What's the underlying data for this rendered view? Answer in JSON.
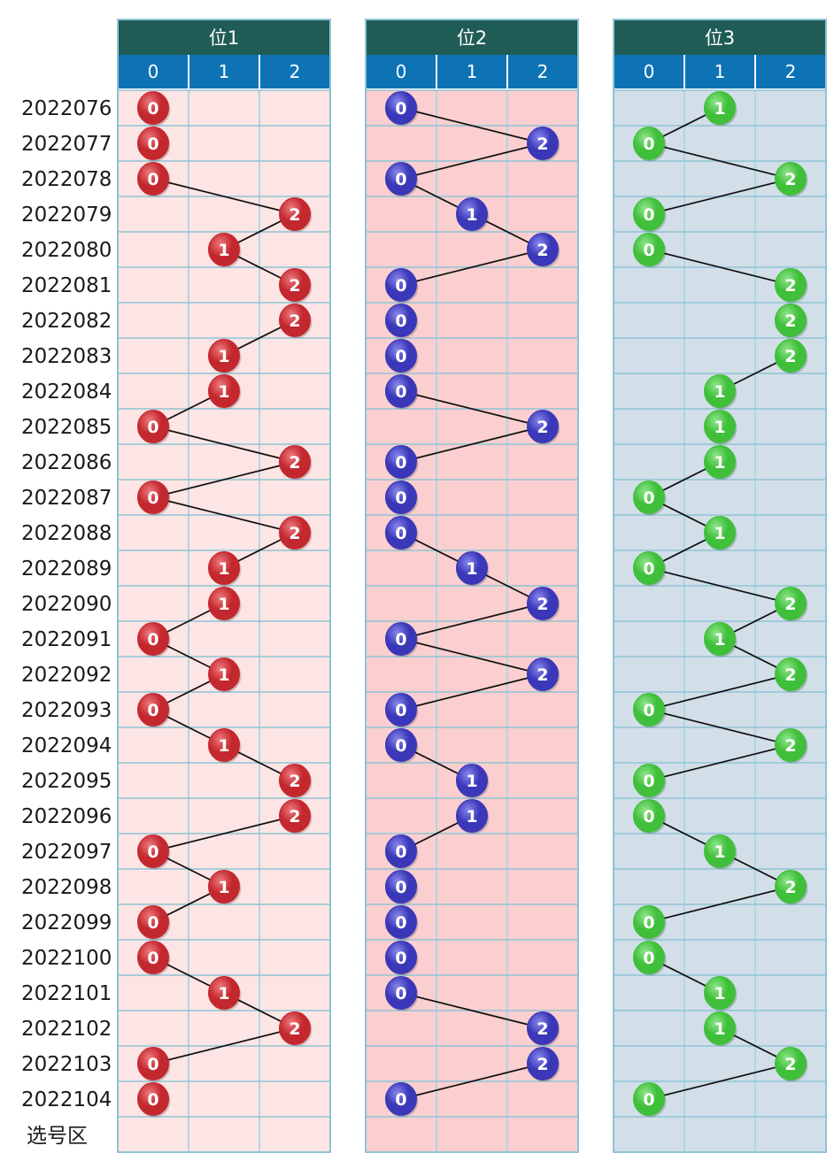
{
  "chart_data": {
    "type": "scatter",
    "row_labels": [
      "2022076",
      "2022077",
      "2022078",
      "2022079",
      "2022080",
      "2022081",
      "2022082",
      "2022083",
      "2022084",
      "2022085",
      "2022086",
      "2022087",
      "2022088",
      "2022089",
      "2022090",
      "2022091",
      "2022092",
      "2022093",
      "2022094",
      "2022095",
      "2022096",
      "2022097",
      "2022098",
      "2022099",
      "2022100",
      "2022101",
      "2022102",
      "2022103",
      "2022104"
    ],
    "footer_label": "选号区",
    "categories": [
      "0",
      "1",
      "2"
    ],
    "series": [
      {
        "name": "位1",
        "values": [
          0,
          0,
          0,
          2,
          1,
          2,
          2,
          1,
          1,
          0,
          2,
          0,
          2,
          1,
          1,
          0,
          1,
          0,
          1,
          2,
          2,
          0,
          1,
          0,
          0,
          1,
          2,
          0,
          0
        ]
      },
      {
        "name": "位2",
        "values": [
          0,
          2,
          0,
          1,
          2,
          0,
          0,
          0,
          0,
          2,
          0,
          0,
          0,
          1,
          2,
          0,
          2,
          0,
          0,
          1,
          1,
          0,
          0,
          0,
          0,
          0,
          2,
          2,
          0
        ]
      },
      {
        "name": "位3",
        "values": [
          1,
          0,
          2,
          0,
          0,
          2,
          2,
          2,
          1,
          1,
          1,
          0,
          1,
          0,
          2,
          1,
          2,
          0,
          2,
          0,
          0,
          1,
          2,
          0,
          0,
          1,
          1,
          2,
          0
        ]
      }
    ]
  },
  "colors": {
    "header_dark": "#1f5c55",
    "header_blue": "#0e73b5",
    "grid": "#8fc4d4",
    "panel_bg": [
      "#fde5e5",
      "#fbcfd0",
      "#d2dfe9"
    ],
    "ball": [
      "#c4282f",
      "#3a37b8",
      "#3fbf3a"
    ],
    "ball_light": [
      "#ee7b7e",
      "#8a88ee",
      "#8fe68b"
    ]
  }
}
